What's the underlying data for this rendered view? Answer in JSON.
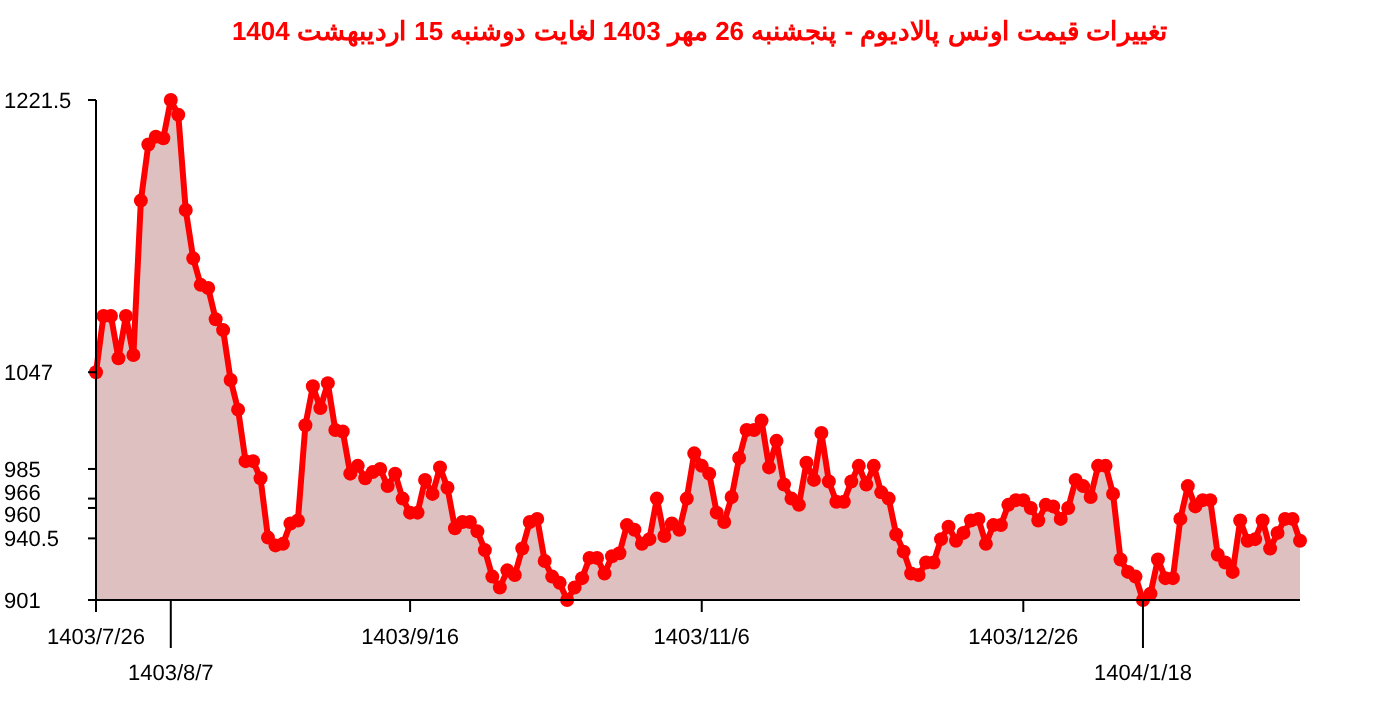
{
  "chart_data": {
    "type": "area",
    "title": "تغییرات قیمت اونس پالادیوم - پنجشنبه  26 مهر 1403 لغایت  دوشنبه  15 اردیبهشت 1404",
    "categories": [
      "1403/7/26",
      null,
      null,
      null,
      null,
      null,
      null,
      null,
      null,
      null,
      "1403/8/7",
      null,
      null,
      null,
      null,
      null,
      null,
      null,
      null,
      null,
      null,
      null,
      null,
      null,
      null,
      null,
      null,
      null,
      null,
      null,
      null,
      null,
      null,
      null,
      null,
      null,
      null,
      null,
      null,
      null,
      null,
      null,
      "1403/9/16",
      null,
      null,
      null,
      null,
      null,
      null,
      null,
      null,
      null,
      null,
      null,
      null,
      null,
      null,
      null,
      null,
      null,
      null,
      null,
      null,
      null,
      null,
      null,
      null,
      null,
      null,
      null,
      null,
      null,
      null,
      null,
      null,
      null,
      null,
      null,
      null,
      null,
      null,
      "1403/11/6",
      null,
      null,
      null,
      null,
      null,
      null,
      null,
      null,
      null,
      null,
      null,
      null,
      null,
      null,
      null,
      null,
      null,
      null,
      null,
      null,
      null,
      null,
      null,
      null,
      null,
      null,
      null,
      null,
      null,
      null,
      null,
      null,
      null,
      null,
      null,
      null,
      null,
      null,
      null,
      null,
      null,
      null,
      "1403/12/26",
      null,
      null,
      null,
      null,
      null,
      null,
      null,
      null,
      null,
      null,
      null,
      null,
      null,
      null,
      null,
      "1404/1/18",
      null,
      null,
      null,
      null,
      null,
      null,
      null,
      null,
      null,
      null,
      null,
      null,
      null,
      null,
      null,
      null,
      null,
      null,
      null,
      null,
      null
    ],
    "ylim": [
      901,
      1221.5
    ],
    "yticks": [
      901,
      940.5,
      960,
      966,
      985,
      1047,
      1221.5
    ],
    "marker": "circle",
    "series": [
      {
        "color": "#ff0000",
        "values": [
          1047,
          1083,
          1083,
          1056,
          1083,
          1058,
          1157,
          1193,
          1198,
          1197,
          1221.5,
          1212,
          1151,
          1120,
          1103,
          1101,
          1081,
          1074,
          1042,
          1023,
          990,
          990,
          979,
          941,
          936,
          937,
          950,
          952,
          1013,
          1038,
          1024,
          1040,
          1010,
          1009,
          982,
          987,
          979,
          983,
          985,
          974,
          982,
          966,
          957,
          957,
          978,
          969,
          986,
          973,
          947,
          951,
          951,
          945,
          933,
          916,
          909,
          920,
          917,
          934,
          951,
          953,
          926,
          916,
          912,
          901,
          909,
          915,
          928,
          928,
          918,
          929,
          931,
          949,
          946,
          937,
          940,
          966,
          942,
          950,
          946,
          966,
          995,
          987,
          982,
          957,
          951,
          967,
          992,
          1010,
          1010,
          1016,
          986,
          1003,
          975,
          966,
          962,
          989,
          978,
          1008,
          977,
          964,
          964,
          977,
          987,
          975,
          987,
          970,
          966,
          943,
          932,
          918,
          917,
          925,
          925,
          940,
          948,
          939,
          944,
          952,
          953,
          937,
          949,
          949,
          962,
          965,
          965,
          960,
          952,
          962,
          961,
          953,
          960,
          978,
          974,
          967,
          987,
          987,
          969,
          927,
          919,
          916,
          901,
          905,
          927,
          915,
          915,
          953,
          974,
          961,
          965,
          965,
          930,
          925,
          919,
          952,
          939,
          940,
          952,
          934,
          944,
          953,
          953,
          939
        ]
      }
    ]
  }
}
